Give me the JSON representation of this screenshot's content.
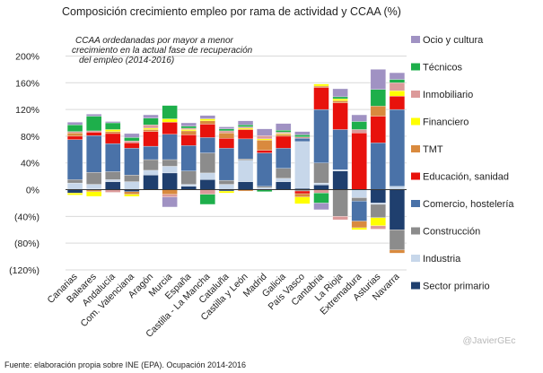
{
  "chart_data": {
    "type": "bar",
    "stacked": true,
    "title": "Composición crecimiento empleo por rama de actividad y CCAA  (%)",
    "annotation": [
      "CCAA ordedanadas por mayor a menor",
      "crecimiento en la actual  fase de recuperación",
      "del empleo (2014-2016)"
    ],
    "source": "Fuente: elaboración  propia sobre INE (EPA). Ocupación  2014-2016",
    "credit": "@JavierGEc",
    "ylim": [
      -120,
      210
    ],
    "yticks": [
      {
        "v": 200,
        "label": "200%"
      },
      {
        "v": 160,
        "label": "160%"
      },
      {
        "v": 120,
        "label": "120%"
      },
      {
        "v": 80,
        "label": "80%"
      },
      {
        "v": 40,
        "label": "40%"
      },
      {
        "v": 0,
        "label": "0%"
      },
      {
        "v": -40,
        "label": "(40%)"
      },
      {
        "v": -80,
        "label": "(80%)"
      },
      {
        "v": -120,
        "label": "(120%)"
      }
    ],
    "grid": true,
    "legend_position": "right",
    "categories": [
      "Canarias",
      "Baleares",
      "Andalucía",
      "Com. Valenciana",
      "Aragón",
      "Murcia",
      "España",
      "Castilla - La Mancha",
      "Cataluña",
      "Castilla y León",
      "Madrid",
      "Galicia",
      "País Vasco",
      "Cantabria",
      "La Rioja",
      "Extremadura",
      "Asturias",
      "Navarra"
    ],
    "series": [
      {
        "name": "Sector primario",
        "color": "#1f3f6e",
        "values": [
          -5,
          1,
          12,
          -3,
          22,
          25,
          5,
          15,
          -2,
          12,
          0,
          12,
          2,
          7,
          28,
          0,
          -20,
          -60
        ]
      },
      {
        "name": "Industria",
        "color": "#c7d7ea",
        "values": [
          10,
          7,
          3,
          12,
          7,
          10,
          3,
          10,
          8,
          32,
          3,
          5,
          70,
          3,
          2,
          -12,
          -2,
          5
        ]
      },
      {
        "name": "Construcción",
        "color": "#8c8c8c",
        "values": [
          5,
          18,
          12,
          10,
          16,
          10,
          20,
          30,
          6,
          2,
          2,
          15,
          -2,
          30,
          -40,
          -5,
          -20,
          -30
        ]
      },
      {
        "name": "Comercio, hostelería",
        "color": "#4a72a8",
        "values": [
          60,
          55,
          42,
          40,
          20,
          38,
          38,
          23,
          48,
          30,
          50,
          30,
          5,
          80,
          60,
          -30,
          70,
          115
        ]
      },
      {
        "name": "Educación, sanidad",
        "color": "#e8120c",
        "values": [
          5,
          5,
          15,
          8,
          22,
          18,
          16,
          20,
          15,
          14,
          4,
          18,
          -4,
          33,
          40,
          85,
          40,
          20
        ]
      },
      {
        "name": "TMT",
        "color": "#d98a3e",
        "values": [
          5,
          -3,
          3,
          -4,
          3,
          -7,
          6,
          5,
          8,
          -2,
          15,
          3,
          -5,
          2,
          3,
          -10,
          15,
          -5
        ]
      },
      {
        "name": "Financiero",
        "color": "#ffff00",
        "values": [
          -3,
          -7,
          3,
          -3,
          2,
          5,
          2,
          3,
          -3,
          2,
          2,
          1,
          -10,
          3,
          3,
          -3,
          -12,
          8
        ]
      },
      {
        "name": "Inmobiliario",
        "color": "#dc9a9a",
        "values": [
          2,
          2,
          -4,
          3,
          5,
          -4,
          2,
          -7,
          3,
          2,
          5,
          2,
          2,
          -5,
          -5,
          5,
          -5,
          12
        ]
      },
      {
        "name": "Técnicos",
        "color": "#1eaf4b",
        "values": [
          10,
          22,
          10,
          5,
          10,
          20,
          3,
          -15,
          3,
          3,
          -3,
          3,
          3,
          -15,
          3,
          12,
          25,
          5
        ]
      },
      {
        "name": "Ocio y cultura",
        "color": "#a092c3",
        "values": [
          4,
          3,
          2,
          6,
          5,
          -15,
          5,
          5,
          3,
          6,
          10,
          10,
          5,
          -10,
          12,
          10,
          30,
          10
        ]
      }
    ]
  }
}
